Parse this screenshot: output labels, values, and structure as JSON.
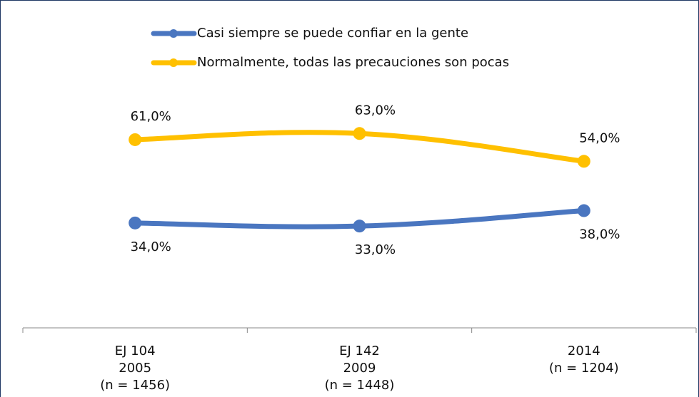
{
  "chart_data": {
    "type": "line",
    "categories": [
      [
        "EJ 104",
        "2005",
        "(n = 1456)"
      ],
      [
        "EJ 142",
        "2009",
        "(n = 1448)"
      ],
      [
        "2014",
        "(n = 1204)"
      ]
    ],
    "series": [
      {
        "name": "Casi siempre se puede confiar en la gente",
        "color": "#4a76c0",
        "values": [
          34,
          33,
          38
        ],
        "value_labels": [
          "34,0%",
          "33,0%",
          "38,0%"
        ]
      },
      {
        "name": "Normalmente, todas las precauciones son pocas",
        "color": "#ffc000",
        "values": [
          61,
          63,
          54
        ],
        "value_labels": [
          "61,0%",
          "63,0%",
          "54,0%"
        ]
      }
    ],
    "ylim": [
      0,
      70
    ]
  }
}
